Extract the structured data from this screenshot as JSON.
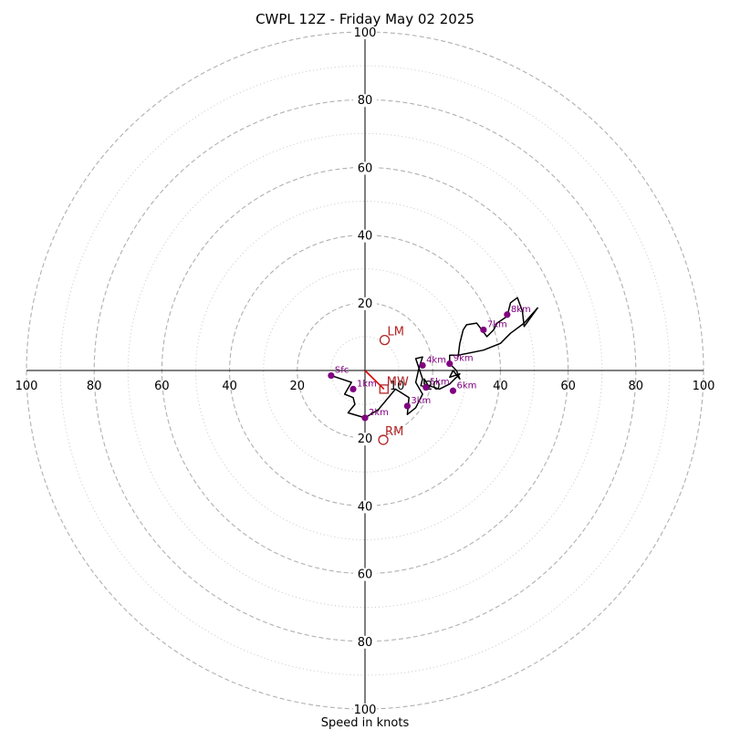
{
  "chart_data": {
    "type": "scatter",
    "subtype": "hodograph",
    "title": "CWPL 12Z - Friday May 02 2025",
    "xlabel": "Speed in knots",
    "ylabel": "",
    "range_max": 100,
    "ring_major": [
      20,
      40,
      60,
      80,
      100
    ],
    "ring_minor": [
      10,
      30,
      50,
      70,
      90
    ],
    "tick_labels": [
      "20",
      "40",
      "60",
      "80",
      "100"
    ],
    "grid": true,
    "colors": {
      "trace": "#000000",
      "height_marker": "#800080",
      "motion": "#b22222",
      "mean_wind_line": "#e00000",
      "ring": "#b0b0b0",
      "minor_ring": "#c8c8c8",
      "axis": "#000000"
    },
    "trace": [
      [
        -10,
        -1.5
      ],
      [
        -4,
        -3.5
      ],
      [
        -6,
        -7
      ],
      [
        -3.5,
        -8
      ],
      [
        -3,
        -10
      ],
      [
        -5,
        -12.5
      ],
      [
        0,
        -14
      ],
      [
        4,
        -11.5
      ],
      [
        9,
        -5.5
      ],
      [
        13,
        -8
      ],
      [
        12.5,
        -13
      ],
      [
        15,
        -11
      ],
      [
        17,
        -7
      ],
      [
        15,
        -3.5
      ],
      [
        16,
        1
      ],
      [
        17,
        4
      ],
      [
        15,
        3.5
      ],
      [
        17,
        -2.5
      ],
      [
        16.5,
        -4.5
      ],
      [
        19,
        -5
      ],
      [
        17.5,
        -2.5
      ],
      [
        17.5,
        -4
      ],
      [
        22,
        -5.5
      ],
      [
        25,
        -4
      ],
      [
        28,
        -1
      ],
      [
        25,
        -2
      ],
      [
        26,
        0
      ],
      [
        28,
        -2.5
      ],
      [
        27,
        0
      ],
      [
        25,
        2
      ],
      [
        25,
        4.5
      ],
      [
        27.5,
        4.5
      ],
      [
        35,
        6
      ],
      [
        40,
        8
      ],
      [
        43,
        11
      ],
      [
        47,
        14
      ],
      [
        51,
        18.5
      ],
      [
        47,
        13
      ],
      [
        46.5,
        17.5
      ],
      [
        45,
        21.5
      ],
      [
        43,
        20
      ],
      [
        42,
        16
      ],
      [
        39,
        14
      ],
      [
        38,
        12
      ],
      [
        36,
        10
      ],
      [
        33,
        14
      ],
      [
        30,
        13.5
      ],
      [
        29,
        12
      ],
      [
        28,
        8
      ],
      [
        27.5,
        4
      ]
    ],
    "height_markers": [
      {
        "label": "Sfc",
        "u": -10,
        "v": -1.5
      },
      {
        "label": "1km",
        "u": -3.5,
        "v": -5.5
      },
      {
        "label": "2km",
        "u": 0,
        "v": -14
      },
      {
        "label": "3km",
        "u": 12.5,
        "v": -10.5
      },
      {
        "label": "4km",
        "u": 17,
        "v": 1.5
      },
      {
        "label": "5km",
        "u": 18,
        "v": -5
      },
      {
        "label": "6km",
        "u": 26,
        "v": -6
      },
      {
        "label": "7km",
        "u": 35,
        "v": 12
      },
      {
        "label": "8km",
        "u": 42,
        "v": 16.5
      },
      {
        "label": "9km",
        "u": 25,
        "v": 2
      }
    ],
    "storm_motion": {
      "LM": {
        "u": 5.8,
        "v": 9
      },
      "RM": {
        "u": 5.4,
        "v": -20.5
      },
      "MW": {
        "u": 5.6,
        "v": -5.5
      }
    },
    "legend": "none"
  }
}
